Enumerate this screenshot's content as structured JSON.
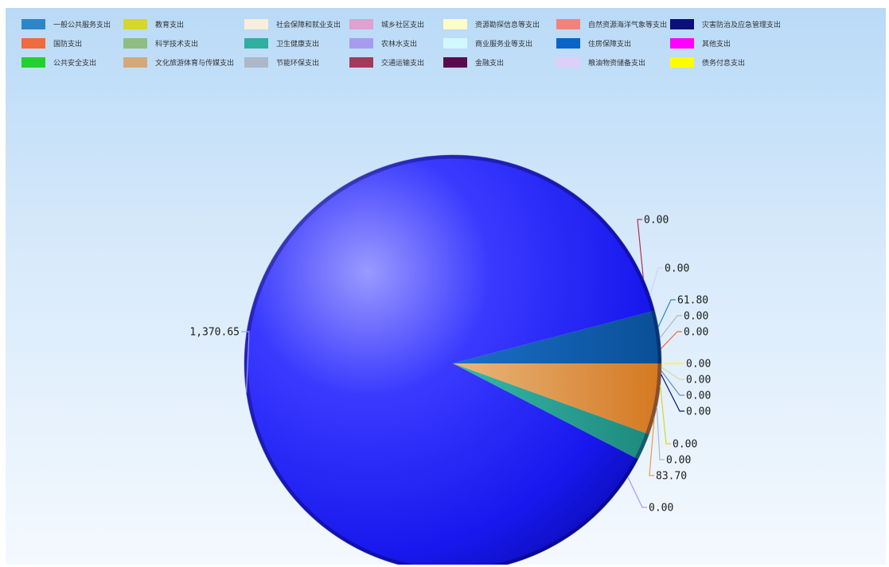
{
  "chart_data": {
    "type": "pie",
    "categories": [
      "一般公共服务支出",
      "教育支出",
      "社会保障和就业支出",
      "城乡社区支出",
      "资源勘探信息等支出",
      "自然资源海洋气象等支出",
      "灾害防治及应急管理支出",
      "国防支出",
      "科学技术支出",
      "卫生健康支出",
      "农林水支出",
      "商业服务业等支出",
      "住房保障支出",
      "其他支出",
      "公共安全支出",
      "文化旅游体育与传媒支出",
      "节能环保支出",
      "交通运输支出",
      "金融支出",
      "粮油物资储备支出",
      "债务付息支出"
    ],
    "colors": [
      "#2e86c8",
      "#d6d62c",
      "#f8eedc",
      "#e0a0d0",
      "#fffcc8",
      "#f4827a",
      "#0b0f7a",
      "#ef6a3d",
      "#8fbe82",
      "#2eafa0",
      "#a79bf0",
      "#d2f8ff",
      "#0a64c8",
      "#ff00ff",
      "#23d12c",
      "#d6a878",
      "#aab8c8",
      "#a33a5a",
      "#5c0a50",
      "#dcd0fa",
      "#fffc00"
    ],
    "values": [
      1370.65,
      0.0,
      0.0,
      0.0,
      0.0,
      0.0,
      0.0,
      0.0,
      0.0,
      0.0,
      0.0,
      0.0,
      61.8,
      0.0,
      0.0,
      83.7,
      0.0,
      0.0,
      0.0,
      0.0,
      0.0
    ],
    "value_labels": [
      "1,370.65",
      "0.00",
      "0.00",
      "0.00",
      "0.00",
      "0.00",
      "0.00",
      "0.00",
      "0.00",
      "0.00",
      "0.00",
      "0.00",
      "61.80",
      "0.00",
      "0.00",
      "83.70",
      "0.00",
      "0.00",
      "0.00",
      "0.00",
      "0.00"
    ],
    "slice_colors": {
      "一般公共服务支出": "#1f1ff2",
      "卫生健康支出": "#2eafa0",
      "住房保障支出": "#0a64c8",
      "文化旅游体育与传媒支出": "#e89a4c"
    },
    "legend_placement": "top"
  }
}
